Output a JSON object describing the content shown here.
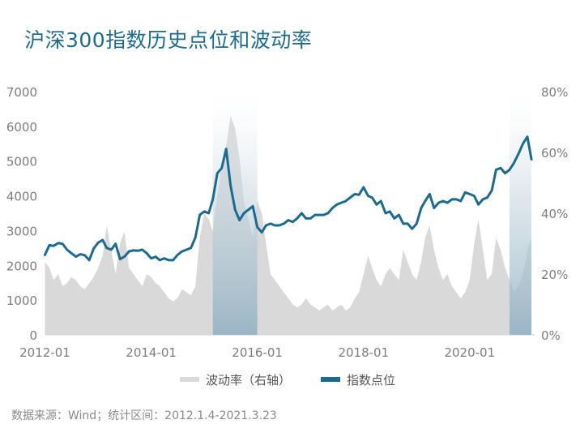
{
  "chart_data": {
    "type": "line",
    "title": "沪深300指数历史点位和波动率",
    "source": "数据来源：Wind；统计区间：2012.1.4-2021.3.23",
    "x_ticks": [
      "2012-01",
      "2014-01",
      "2016-01",
      "2018-01",
      "2020-01"
    ],
    "x_range": [
      "2012-01-04",
      "2021-03-23"
    ],
    "y_left": {
      "ticks": [
        "0",
        "1000",
        "2000",
        "3000",
        "4000",
        "5000",
        "6000",
        "7000"
      ],
      "range": [
        0,
        7000
      ]
    },
    "y_right": {
      "ticks": [
        "0%",
        "20%",
        "40%",
        "60%",
        "80%"
      ],
      "range": [
        0,
        80
      ]
    },
    "legend_placement": "bottom-center",
    "highlight_periods": [
      {
        "start": "2015-03",
        "end": "2016-01"
      },
      {
        "start": "2020-10",
        "end": "2021-03"
      }
    ],
    "series": [
      {
        "name": "波动率（右轴）",
        "axis": "right",
        "type": "area",
        "color": "#d9d9d9",
        "points": [
          [
            "2012-01",
            24
          ],
          [
            "2012-02",
            22
          ],
          [
            "2012-03",
            18
          ],
          [
            "2012-04",
            20
          ],
          [
            "2012-05",
            16
          ],
          [
            "2012-06",
            17
          ],
          [
            "2012-07",
            19
          ],
          [
            "2012-08",
            18
          ],
          [
            "2012-09",
            16
          ],
          [
            "2012-10",
            15
          ],
          [
            "2012-11",
            17
          ],
          [
            "2012-12",
            19
          ],
          [
            "2013-01",
            22
          ],
          [
            "2013-02",
            26
          ],
          [
            "2013-03",
            36
          ],
          [
            "2013-04",
            28
          ],
          [
            "2013-05",
            20
          ],
          [
            "2013-06",
            30
          ],
          [
            "2013-07",
            34
          ],
          [
            "2013-08",
            22
          ],
          [
            "2013-09",
            20
          ],
          [
            "2013-10",
            18
          ],
          [
            "2013-11",
            16
          ],
          [
            "2013-12",
            20
          ],
          [
            "2014-01",
            19
          ],
          [
            "2014-02",
            17
          ],
          [
            "2014-03",
            16
          ],
          [
            "2014-04",
            14
          ],
          [
            "2014-05",
            12
          ],
          [
            "2014-06",
            11
          ],
          [
            "2014-07",
            12
          ],
          [
            "2014-08",
            15
          ],
          [
            "2014-09",
            14
          ],
          [
            "2014-10",
            13
          ],
          [
            "2014-11",
            16
          ],
          [
            "2014-12",
            32
          ],
          [
            "2015-01",
            40
          ],
          [
            "2015-02",
            38
          ],
          [
            "2015-03",
            34
          ],
          [
            "2015-04",
            46
          ],
          [
            "2015-05",
            56
          ],
          [
            "2015-06",
            62
          ],
          [
            "2015-07",
            72
          ],
          [
            "2015-08",
            68
          ],
          [
            "2015-09",
            58
          ],
          [
            "2015-10",
            44
          ],
          [
            "2015-11",
            38
          ],
          [
            "2015-12",
            32
          ],
          [
            "2016-01",
            44
          ],
          [
            "2016-02",
            40
          ],
          [
            "2016-03",
            30
          ],
          [
            "2016-04",
            20
          ],
          [
            "2016-05",
            18
          ],
          [
            "2016-06",
            16
          ],
          [
            "2016-07",
            14
          ],
          [
            "2016-08",
            12
          ],
          [
            "2016-09",
            10
          ],
          [
            "2016-10",
            9
          ],
          [
            "2016-11",
            10
          ],
          [
            "2016-12",
            12
          ],
          [
            "2017-01",
            10
          ],
          [
            "2017-02",
            9
          ],
          [
            "2017-03",
            8
          ],
          [
            "2017-04",
            9
          ],
          [
            "2017-05",
            10
          ],
          [
            "2017-06",
            8
          ],
          [
            "2017-07",
            9
          ],
          [
            "2017-08",
            10
          ],
          [
            "2017-09",
            8
          ],
          [
            "2017-10",
            9
          ],
          [
            "2017-11",
            12
          ],
          [
            "2017-12",
            14
          ],
          [
            "2018-01",
            20
          ],
          [
            "2018-02",
            26
          ],
          [
            "2018-03",
            22
          ],
          [
            "2018-04",
            18
          ],
          [
            "2018-05",
            16
          ],
          [
            "2018-06",
            20
          ],
          [
            "2018-07",
            22
          ],
          [
            "2018-08",
            20
          ],
          [
            "2018-09",
            18
          ],
          [
            "2018-10",
            28
          ],
          [
            "2018-11",
            24
          ],
          [
            "2018-12",
            20
          ],
          [
            "2019-01",
            18
          ],
          [
            "2019-02",
            24
          ],
          [
            "2019-03",
            32
          ],
          [
            "2019-04",
            36
          ],
          [
            "2019-05",
            28
          ],
          [
            "2019-06",
            22
          ],
          [
            "2019-07",
            18
          ],
          [
            "2019-08",
            20
          ],
          [
            "2019-09",
            16
          ],
          [
            "2019-10",
            14
          ],
          [
            "2019-11",
            12
          ],
          [
            "2019-12",
            14
          ],
          [
            "2020-01",
            18
          ],
          [
            "2020-02",
            30
          ],
          [
            "2020-03",
            38
          ],
          [
            "2020-04",
            28
          ],
          [
            "2020-05",
            18
          ],
          [
            "2020-06",
            20
          ],
          [
            "2020-07",
            32
          ],
          [
            "2020-08",
            28
          ],
          [
            "2020-09",
            22
          ],
          [
            "2020-10",
            18
          ],
          [
            "2020-11",
            14
          ],
          [
            "2020-12",
            16
          ],
          [
            "2021-01",
            20
          ],
          [
            "2021-02",
            28
          ],
          [
            "2021-03",
            32
          ]
        ]
      },
      {
        "name": "指数点位",
        "axis": "left",
        "type": "line",
        "color": "#1a6b94",
        "points": [
          [
            "2012-01",
            2300
          ],
          [
            "2012-02",
            2580
          ],
          [
            "2012-03",
            2560
          ],
          [
            "2012-04",
            2640
          ],
          [
            "2012-05",
            2620
          ],
          [
            "2012-06",
            2450
          ],
          [
            "2012-07",
            2350
          ],
          [
            "2012-08",
            2250
          ],
          [
            "2012-09",
            2320
          ],
          [
            "2012-10",
            2290
          ],
          [
            "2012-11",
            2150
          ],
          [
            "2012-12",
            2480
          ],
          [
            "2013-01",
            2650
          ],
          [
            "2013-02",
            2730
          ],
          [
            "2013-03",
            2500
          ],
          [
            "2013-04",
            2450
          ],
          [
            "2013-05",
            2620
          ],
          [
            "2013-06",
            2180
          ],
          [
            "2013-07",
            2250
          ],
          [
            "2013-08",
            2400
          ],
          [
            "2013-09",
            2430
          ],
          [
            "2013-10",
            2420
          ],
          [
            "2013-11",
            2450
          ],
          [
            "2013-12",
            2350
          ],
          [
            "2014-01",
            2200
          ],
          [
            "2014-02",
            2250
          ],
          [
            "2014-03",
            2150
          ],
          [
            "2014-04",
            2200
          ],
          [
            "2014-05",
            2150
          ],
          [
            "2014-06",
            2150
          ],
          [
            "2014-07",
            2300
          ],
          [
            "2014-08",
            2400
          ],
          [
            "2014-09",
            2450
          ],
          [
            "2014-10",
            2500
          ],
          [
            "2014-11",
            2800
          ],
          [
            "2014-12",
            3450
          ],
          [
            "2015-01",
            3550
          ],
          [
            "2015-02",
            3500
          ],
          [
            "2015-03",
            3900
          ],
          [
            "2015-04",
            4650
          ],
          [
            "2015-05",
            4800
          ],
          [
            "2015-06",
            5350
          ],
          [
            "2015-07",
            4300
          ],
          [
            "2015-08",
            3600
          ],
          [
            "2015-09",
            3300
          ],
          [
            "2015-10",
            3500
          ],
          [
            "2015-11",
            3600
          ],
          [
            "2015-12",
            3700
          ],
          [
            "2016-01",
            3100
          ],
          [
            "2016-02",
            2950
          ],
          [
            "2016-03",
            3150
          ],
          [
            "2016-04",
            3200
          ],
          [
            "2016-05",
            3150
          ],
          [
            "2016-06",
            3150
          ],
          [
            "2016-07",
            3200
          ],
          [
            "2016-08",
            3300
          ],
          [
            "2016-09",
            3250
          ],
          [
            "2016-10",
            3350
          ],
          [
            "2016-11",
            3500
          ],
          [
            "2016-12",
            3350
          ],
          [
            "2017-01",
            3350
          ],
          [
            "2017-02",
            3450
          ],
          [
            "2017-03",
            3450
          ],
          [
            "2017-04",
            3450
          ],
          [
            "2017-05",
            3500
          ],
          [
            "2017-06",
            3650
          ],
          [
            "2017-07",
            3750
          ],
          [
            "2017-08",
            3800
          ],
          [
            "2017-09",
            3850
          ],
          [
            "2017-10",
            3950
          ],
          [
            "2017-11",
            4050
          ],
          [
            "2017-12",
            4030
          ],
          [
            "2018-01",
            4250
          ],
          [
            "2018-02",
            4000
          ],
          [
            "2018-03",
            3950
          ],
          [
            "2018-04",
            3750
          ],
          [
            "2018-05",
            3850
          ],
          [
            "2018-06",
            3500
          ],
          [
            "2018-07",
            3550
          ],
          [
            "2018-08",
            3350
          ],
          [
            "2018-09",
            3450
          ],
          [
            "2018-10",
            3200
          ],
          [
            "2018-11",
            3200
          ],
          [
            "2018-12",
            3050
          ],
          [
            "2019-01",
            3200
          ],
          [
            "2019-02",
            3650
          ],
          [
            "2019-03",
            3850
          ],
          [
            "2019-04",
            4050
          ],
          [
            "2019-05",
            3650
          ],
          [
            "2019-06",
            3800
          ],
          [
            "2019-07",
            3850
          ],
          [
            "2019-08",
            3800
          ],
          [
            "2019-09",
            3900
          ],
          [
            "2019-10",
            3900
          ],
          [
            "2019-11",
            3850
          ],
          [
            "2019-12",
            4100
          ],
          [
            "2020-01",
            4050
          ],
          [
            "2020-02",
            4000
          ],
          [
            "2020-03",
            3750
          ],
          [
            "2020-04",
            3900
          ],
          [
            "2020-05",
            3950
          ],
          [
            "2020-06",
            4150
          ],
          [
            "2020-07",
            4750
          ],
          [
            "2020-08",
            4800
          ],
          [
            "2020-09",
            4650
          ],
          [
            "2020-10",
            4750
          ],
          [
            "2020-11",
            4950
          ],
          [
            "2020-12",
            5200
          ],
          [
            "2021-01",
            5500
          ],
          [
            "2021-02",
            5700
          ],
          [
            "2021-03",
            5050
          ]
        ]
      }
    ]
  }
}
